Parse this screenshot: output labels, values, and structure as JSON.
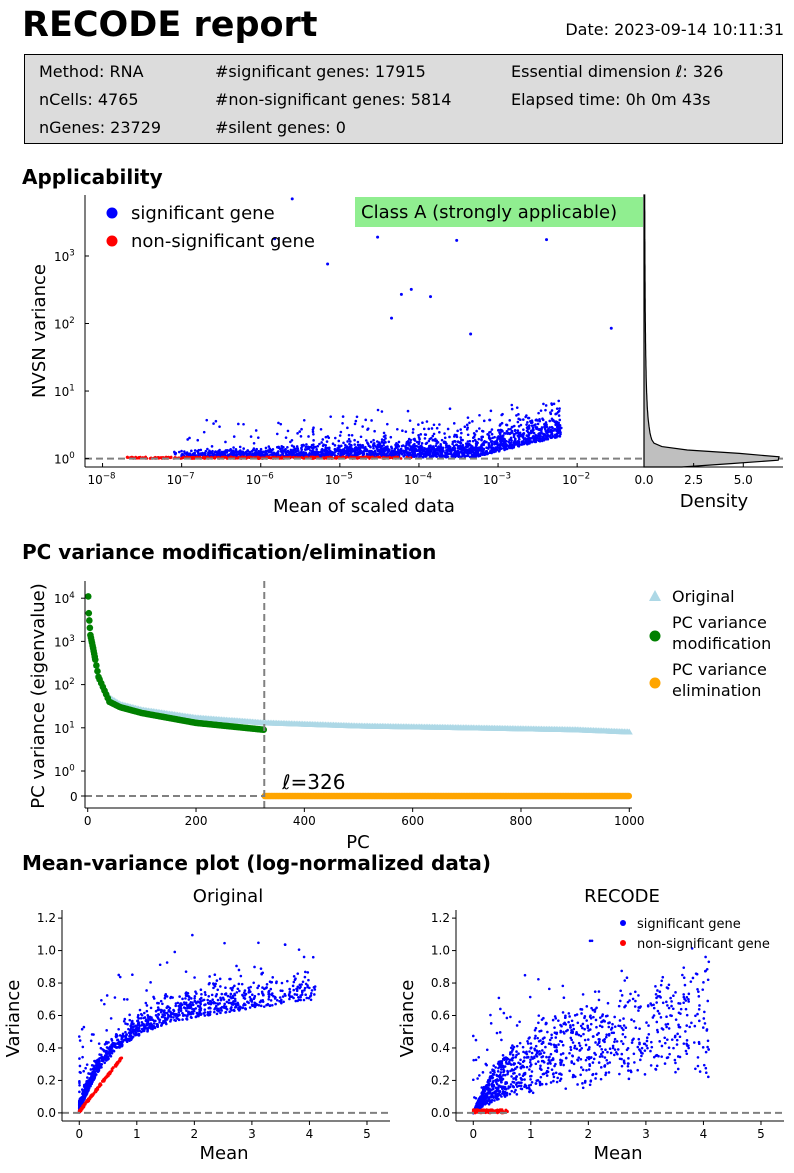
{
  "header": {
    "title": "RECODE report",
    "date": "Date: 2023-09-14 10:11:31"
  },
  "info": {
    "method": "Method: RNA",
    "ncells": "nCells: 4765",
    "ngenes": "nGenes: 23729",
    "significant": "#significant genes: 17915",
    "nonsignificant": "#non-significant genes: 5814",
    "silent": "#silent genes: 0",
    "essential_dim": "Essential dimension ℓ: 326",
    "elapsed": "Elapsed time: 0h 0m 43s"
  },
  "sections": {
    "applicability": "Applicability",
    "pc_variance": "PC variance modification/elimination",
    "mean_variance": "Mean-variance plot (log-normalized data)"
  },
  "colors": {
    "significant": "#0000ff",
    "nonsignificant": "#ff0000",
    "original": "#add8e6",
    "modification": "#008000",
    "elimination": "#ffa500",
    "class_badge": "#90ee90"
  },
  "chart_data": [
    {
      "id": "applicability",
      "type": "scatter",
      "xlabel": "Mean of scaled data",
      "ylabel": "NVSN variance",
      "xscale": "log",
      "yscale": "log",
      "xlim": [
        6e-09,
        0.07
      ],
      "ylim": [
        0.75,
        8000
      ],
      "xticks": [
        "10^-8",
        "10^-7",
        "10^-6",
        "10^-5",
        "10^-4",
        "10^-3",
        "10^-2"
      ],
      "yticks": [
        "10^0",
        "10^1",
        "10^2",
        "10^3"
      ],
      "reference_line_y": 1,
      "legend": [
        "significant gene",
        "non-significant gene"
      ],
      "legend_position": "top-left",
      "annotation": "Class A (strongly applicable)",
      "outliers": [
        [
          2.5e-06,
          7000
        ],
        [
          0.00013,
          3000
        ],
        [
          3e-05,
          1900
        ],
        [
          1.5e-06,
          1800
        ],
        [
          0.0003,
          1700
        ],
        [
          0.0041,
          1750
        ],
        [
          7e-06,
          760
        ],
        [
          8e-05,
          320
        ],
        [
          0.00014,
          250
        ],
        [
          4.5e-05,
          120
        ],
        [
          6e-05,
          270
        ],
        [
          0.027,
          85
        ],
        [
          0.00045,
          70
        ]
      ],
      "density_panel": {
        "xlabel": "Density",
        "xticks": [
          "0.0",
          "2.5",
          "5.0"
        ],
        "xlim": [
          0,
          7
        ],
        "peak": 6.8
      }
    },
    {
      "id": "pc_variance",
      "type": "scatter",
      "xlabel": "PC",
      "ylabel": "PC variance (eigenvalue)",
      "xlim": [
        -5,
        1005
      ],
      "xticks": [
        "0",
        "200",
        "400",
        "600",
        "800",
        "1000"
      ],
      "yticks": [
        "0",
        "10^0",
        "10^1",
        "10^2",
        "10^3",
        "10^4"
      ],
      "yscale": "symlog",
      "essential_dimension": 326,
      "essential_label": "ℓ=326",
      "series": [
        {
          "name": "Original",
          "marker": "triangle",
          "values_desc": [
            [
              1,
              11000
            ],
            [
              2,
              4500
            ],
            [
              5,
              1400
            ],
            [
              10,
              700
            ],
            [
              20,
              150
            ],
            [
              40,
              50
            ],
            [
              60,
              35
            ],
            [
              100,
              26
            ],
            [
              200,
              17
            ],
            [
              326,
              13
            ],
            [
              500,
              11
            ],
            [
              700,
              10
            ],
            [
              900,
              9
            ],
            [
              1000,
              8
            ]
          ]
        },
        {
          "name": "PC variance modification",
          "marker": "circle",
          "values_desc": [
            [
              1,
              11000
            ],
            [
              2,
              4500
            ],
            [
              5,
              1400
            ],
            [
              10,
              700
            ],
            [
              20,
              150
            ],
            [
              40,
              40
            ],
            [
              60,
              30
            ],
            [
              100,
              22
            ],
            [
              200,
              13
            ],
            [
              326,
              9
            ]
          ]
        },
        {
          "name": "PC variance elimination",
          "marker": "circle",
          "values_desc": [
            [
              327,
              0
            ],
            [
              1000,
              0
            ]
          ]
        }
      ],
      "legend": [
        "Original",
        "PC variance modification",
        "PC variance elimination"
      ],
      "legend_position": "right"
    },
    {
      "id": "mv_original",
      "type": "scatter",
      "title": "Original",
      "xlabel": "Mean",
      "ylabel": "Variance",
      "xlim": [
        -0.3,
        5.4
      ],
      "ylim": [
        -0.05,
        1.25
      ],
      "xticks": [
        "0",
        "1",
        "2",
        "3",
        "4",
        "5"
      ],
      "yticks": [
        "0.0",
        "0.2",
        "0.4",
        "0.6",
        "0.8",
        "1.0",
        "1.2"
      ],
      "reference_line_y": 0
    },
    {
      "id": "mv_recode",
      "type": "scatter",
      "title": "RECODE",
      "xlabel": "Mean",
      "ylabel": "Variance",
      "xlim": [
        -0.3,
        5.4
      ],
      "ylim": [
        -0.05,
        1.25
      ],
      "xticks": [
        "0",
        "1",
        "2",
        "3",
        "4",
        "5"
      ],
      "yticks": [
        "0.0",
        "0.2",
        "0.4",
        "0.6",
        "0.8",
        "1.0",
        "1.2"
      ],
      "reference_line_y": 0,
      "legend": [
        "significant gene",
        "non-significant gene"
      ],
      "legend_position": "top-right"
    }
  ]
}
